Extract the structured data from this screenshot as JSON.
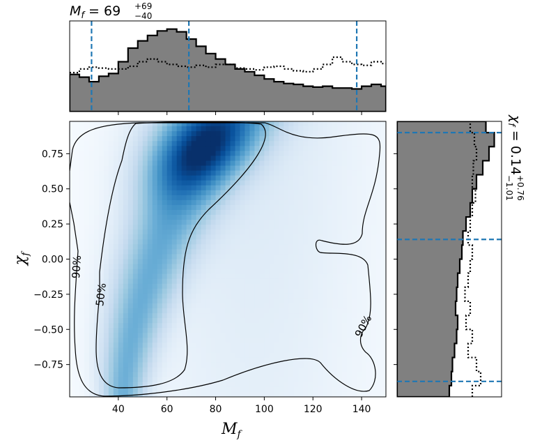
{
  "chart_data": {
    "type": "heatmap",
    "description_panels": [
      "top marginal histogram",
      "joint density with contours",
      "right marginal histogram"
    ],
    "x_parameter": {
      "label_base": "M",
      "label_sub": "f",
      "lim": [
        20,
        150
      ],
      "ticks": [
        40,
        60,
        80,
        100,
        120,
        140
      ],
      "median": 69,
      "plus": 69,
      "minus": 40,
      "interval_lines": [
        29,
        69,
        138
      ],
      "title_plus": "+69",
      "title_minus": "−40",
      "title_value": "69"
    },
    "y_parameter": {
      "label_base": "χ",
      "label_sub": "f",
      "lim": [
        -0.98,
        0.98
      ],
      "ticks": [
        -0.75,
        -0.5,
        -0.25,
        0.0,
        0.25,
        0.5,
        0.75
      ],
      "tick_labels": [
        "−0.75",
        "−0.50",
        "−0.25",
        "0.00",
        "0.25",
        "0.50",
        "0.75"
      ],
      "median": 0.14,
      "plus": 0.76,
      "minus": 1.01,
      "interval_lines": [
        -0.87,
        0.14,
        0.9
      ],
      "title_value": "0.14",
      "title_plus": "+0.76",
      "title_minus": "−1.01"
    },
    "colormap": "Blues",
    "contour_labels": [
      "90%",
      "50%",
      "90%"
    ],
    "contour_levels": [
      "50%",
      "90%"
    ],
    "posterior_peak": {
      "x": 75,
      "y": 0.8
    },
    "top_hist_posterior": {
      "bin_edges": [
        20,
        24,
        28,
        32,
        36,
        40,
        44,
        48,
        52,
        56,
        60,
        64,
        68,
        72,
        76,
        80,
        84,
        88,
        92,
        96,
        100,
        104,
        108,
        112,
        116,
        120,
        124,
        128,
        132,
        136,
        140,
        144,
        148,
        150
      ],
      "density": [
        0.41,
        0.38,
        0.33,
        0.39,
        0.42,
        0.55,
        0.7,
        0.78,
        0.84,
        0.89,
        0.91,
        0.88,
        0.8,
        0.72,
        0.64,
        0.58,
        0.52,
        0.47,
        0.44,
        0.4,
        0.36,
        0.33,
        0.31,
        0.3,
        0.28,
        0.27,
        0.28,
        0.26,
        0.26,
        0.25,
        0.28,
        0.3,
        0.28
      ]
    },
    "top_hist_prior": {
      "bin_edges": [
        20,
        24,
        28,
        32,
        36,
        40,
        44,
        48,
        52,
        56,
        60,
        64,
        68,
        72,
        76,
        80,
        84,
        88,
        92,
        96,
        100,
        104,
        108,
        112,
        116,
        120,
        124,
        128,
        132,
        136,
        140,
        144,
        148,
        150
      ],
      "density": [
        0.43,
        0.47,
        0.49,
        0.48,
        0.47,
        0.47,
        0.5,
        0.55,
        0.58,
        0.55,
        0.52,
        0.5,
        0.49,
        0.51,
        0.49,
        0.52,
        0.52,
        0.48,
        0.47,
        0.46,
        0.49,
        0.5,
        0.47,
        0.45,
        0.44,
        0.47,
        0.52,
        0.6,
        0.55,
        0.52,
        0.51,
        0.55,
        0.53
      ]
    },
    "right_hist_posterior": {
      "bin_edges": [
        -0.98,
        -0.9,
        -0.8,
        -0.7,
        -0.6,
        -0.5,
        -0.4,
        -0.3,
        -0.2,
        -0.1,
        0.0,
        0.1,
        0.2,
        0.3,
        0.4,
        0.5,
        0.6,
        0.7,
        0.8,
        0.9,
        0.98
      ],
      "density": [
        0.5,
        0.52,
        0.53,
        0.55,
        0.57,
        0.58,
        0.56,
        0.57,
        0.58,
        0.6,
        0.62,
        0.63,
        0.66,
        0.7,
        0.72,
        0.76,
        0.82,
        0.88,
        0.93,
        0.85
      ]
    },
    "right_hist_prior": {
      "bin_edges": [
        -0.98,
        -0.9,
        -0.8,
        -0.7,
        -0.6,
        -0.5,
        -0.4,
        -0.3,
        -0.2,
        -0.1,
        0.0,
        0.1,
        0.2,
        0.3,
        0.4,
        0.5,
        0.6,
        0.7,
        0.8,
        0.9,
        0.98
      ],
      "density": [
        0.72,
        0.8,
        0.76,
        0.68,
        0.72,
        0.66,
        0.7,
        0.65,
        0.68,
        0.7,
        0.72,
        0.68,
        0.7,
        0.72,
        0.75,
        0.72,
        0.73,
        0.76,
        0.74,
        0.7
      ]
    }
  }
}
